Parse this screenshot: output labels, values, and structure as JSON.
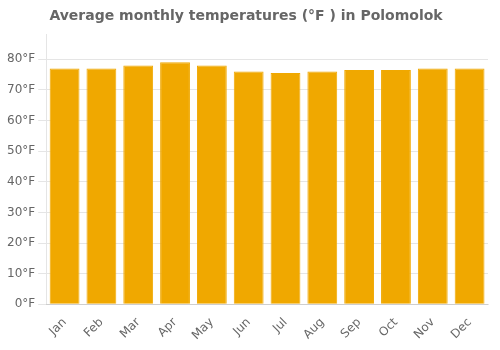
{
  "chart_data": {
    "type": "bar",
    "title": "Average monthly temperatures (°F ) in Polomolok",
    "categories": [
      "Jan",
      "Feb",
      "Mar",
      "Apr",
      "May",
      "Jun",
      "Jul",
      "Aug",
      "Sep",
      "Oct",
      "Nov",
      "Dec"
    ],
    "values": [
      77,
      77,
      78,
      79,
      78,
      76,
      75.5,
      76,
      76.5,
      76.5,
      77,
      77
    ],
    "color": "#F0A800",
    "ylim": [
      0,
      88
    ],
    "yticks": [
      {
        "value": 0,
        "label": "0°F"
      },
      {
        "value": 10,
        "label": "10°F"
      },
      {
        "value": 20,
        "label": "20°F"
      },
      {
        "value": 30,
        "label": "30°F"
      },
      {
        "value": 40,
        "label": "40°F"
      },
      {
        "value": 50,
        "label": "50°F"
      },
      {
        "value": 60,
        "label": "60°F"
      },
      {
        "value": 70,
        "label": "70°F"
      },
      {
        "value": 80,
        "label": "80°F"
      }
    ],
    "grid": "y"
  }
}
